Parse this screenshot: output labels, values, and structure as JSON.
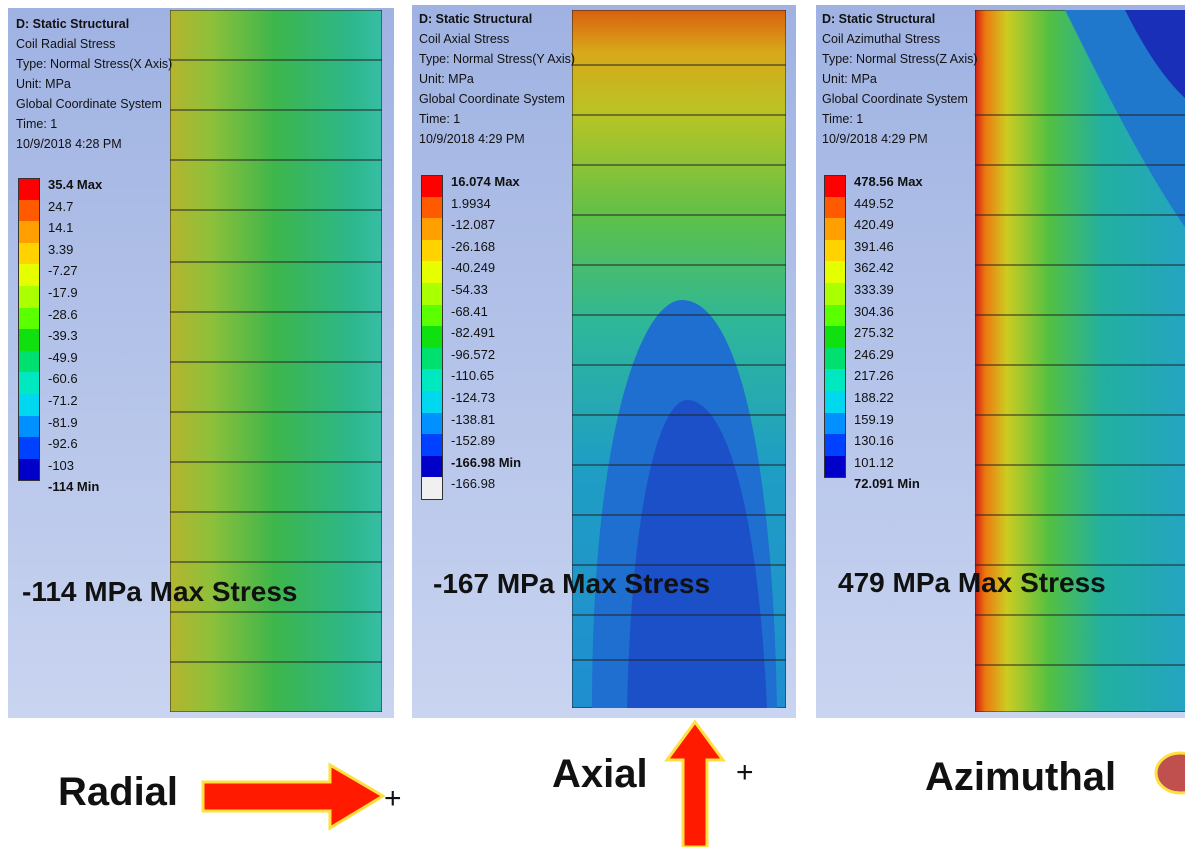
{
  "panels": [
    {
      "header": [
        "D: Static Structural",
        "Coil Radial Stress",
        "Type: Normal Stress(X Axis)",
        "Unit: MPa",
        "Global Coordinate System",
        "Time: 1",
        "10/9/2018 4:28 PM"
      ],
      "legend": [
        "35.4 Max",
        "24.7",
        "14.1",
        "3.39",
        "-7.27",
        "-17.9",
        "-28.6",
        "-39.3",
        "-49.9",
        "-60.6",
        "-71.2",
        "-81.9",
        "-92.6",
        "-103",
        "-114 Min"
      ],
      "caption": "-114 MPa Max Stress"
    },
    {
      "header": [
        "D: Static Structural",
        "Coil Axial Stress",
        "Type: Normal Stress(Y Axis)",
        "Unit: MPa",
        "Global Coordinate System",
        "Time: 1",
        "10/9/2018 4:29 PM"
      ],
      "legend": [
        "16.074 Max",
        "1.9934",
        "-12.087",
        "-26.168",
        "-40.249",
        "-54.33",
        "-68.41",
        "-82.491",
        "-96.572",
        "-110.65",
        "-124.73",
        "-138.81",
        "-152.89",
        "-166.98 Min",
        "-166.98"
      ],
      "caption": "-167 MPa Max Stress"
    },
    {
      "header": [
        "D: Static Structural",
        "Coil Azimuthal Stress",
        "Type: Normal Stress(Z Axis)",
        "Unit: MPa",
        "Global Coordinate System",
        "Time: 1",
        "10/9/2018 4:29 PM"
      ],
      "legend": [
        "478.56 Max",
        "449.52",
        "420.49",
        "391.46",
        "362.42",
        "333.39",
        "304.36",
        "275.32",
        "246.29",
        "217.26",
        "188.22",
        "159.19",
        "130.16",
        "101.12",
        "72.091 Min"
      ],
      "caption": "479 MPa Max Stress"
    }
  ],
  "directions": [
    {
      "label": "Radial",
      "sign": "+"
    },
    {
      "label": "Axial",
      "sign": "+"
    },
    {
      "label": "Azimuthal"
    }
  ]
}
